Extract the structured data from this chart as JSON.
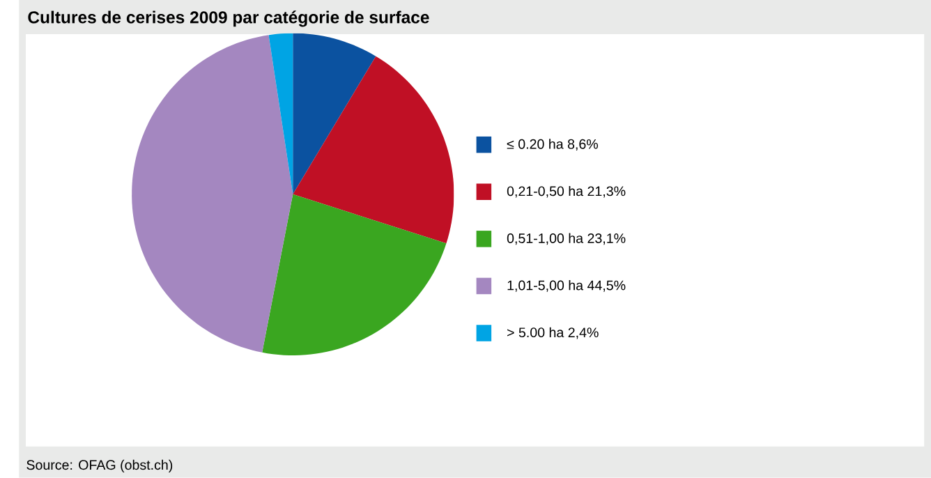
{
  "chart_data": {
    "type": "pie",
    "title": "Cultures de cerises 2009 par catégorie de surface",
    "categories": [
      "≤ 0.20 ha 8,6%",
      "0,21-0,50 ha 21,3%",
      "0,51-1,00 ha 23,1%",
      "1,01-5,00 ha 44,5%",
      "> 5.00 ha 2,4%"
    ],
    "values": [
      8.6,
      21.3,
      23.1,
      44.5,
      2.4
    ],
    "colors": [
      "#0b52a0",
      "#c01025",
      "#3aa620",
      "#a487c0",
      "#00a4e4"
    ],
    "legend": "right",
    "annotations": [
      "Source: OFAG (obst.ch)"
    ]
  }
}
